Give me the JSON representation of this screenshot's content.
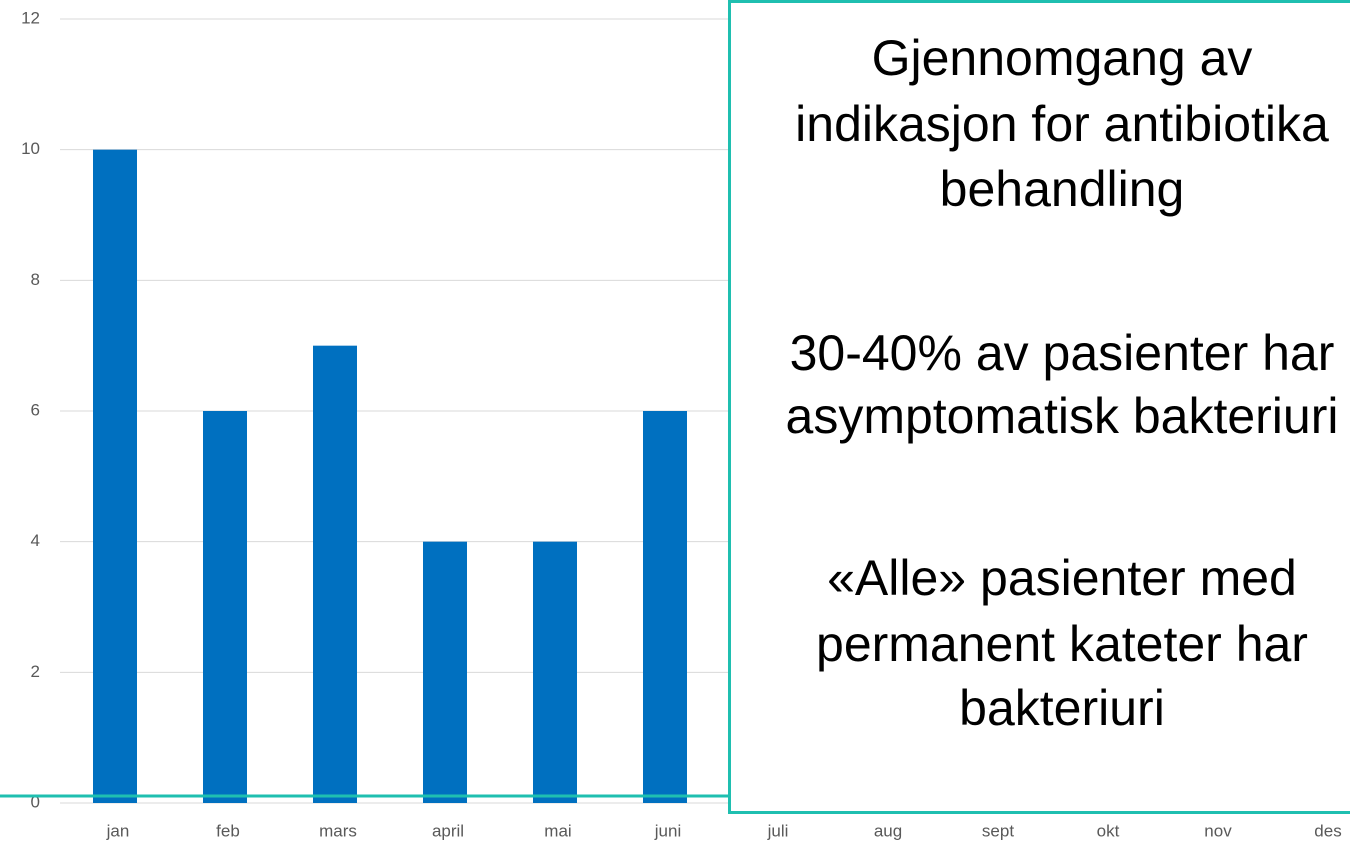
{
  "chart_data": {
    "type": "bar",
    "categories": [
      "jan",
      "feb",
      "mars",
      "april",
      "mai",
      "juni",
      "juli",
      "aug",
      "sept",
      "okt",
      "nov",
      "des"
    ],
    "values": [
      10,
      6,
      7,
      4,
      4,
      6,
      null,
      null,
      null,
      null,
      null,
      null
    ],
    "color": "#0070c0",
    "ylim": [
      0,
      12
    ],
    "yticks": [
      0,
      2,
      4,
      6,
      8,
      10,
      12
    ],
    "grid": true
  },
  "text_box": {
    "lines": [
      "Gjennomgang av",
      "indikasjon for antibiotika",
      "behandling",
      "30-40% av pasienter har",
      "asymptomatisk bakteriuri",
      "«Alle» pasienter med",
      "permanent kateter har",
      "bakteriuri"
    ]
  }
}
